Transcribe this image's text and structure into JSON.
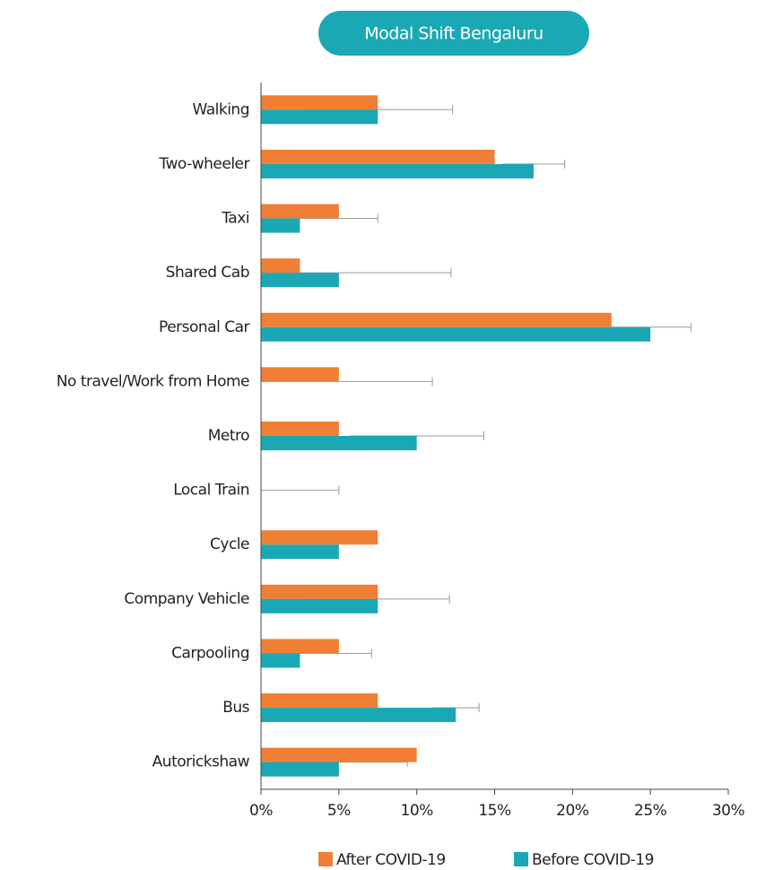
{
  "chart_data": {
    "type": "bar",
    "orientation": "horizontal",
    "title": "Modal Shift Bengaluru",
    "categories": [
      "Walking",
      "Two-wheeler",
      "Taxi",
      "Shared Cab",
      "Personal Car",
      "No travel/Work from Home",
      "Metro",
      "Local Train",
      "Cycle",
      "Company Vehicle",
      "Carpooling",
      "Bus",
      "Autorickshaw"
    ],
    "series": [
      {
        "name": "After COVID-19",
        "color": "#f07f35",
        "values": [
          7.5,
          15,
          5,
          2.5,
          22.5,
          5,
          5,
          0,
          7.5,
          7.5,
          5,
          7.5,
          10
        ]
      },
      {
        "name": "Before COVID-19",
        "color": "#1aa8b4",
        "values": [
          7.5,
          17.5,
          2.5,
          5,
          25,
          0,
          10,
          0,
          5,
          7.5,
          2.5,
          12.5,
          5
        ],
        "errors": [
          4.8,
          2,
          5,
          7.2,
          2.6,
          11,
          4.3,
          5,
          null,
          4.6,
          4.6,
          1.5,
          4.4
        ]
      }
    ],
    "xlim": [
      0,
      30
    ],
    "xticks": [
      {
        "value": 0,
        "label": "0%"
      },
      {
        "value": 5,
        "label": "5%"
      },
      {
        "value": 10,
        "label": "10%"
      },
      {
        "value": 15,
        "label": "15%"
      },
      {
        "value": 20,
        "label": "20%"
      },
      {
        "value": 25,
        "label": "25%"
      },
      {
        "value": 30,
        "label": "30%"
      }
    ],
    "legend": "bottom"
  }
}
